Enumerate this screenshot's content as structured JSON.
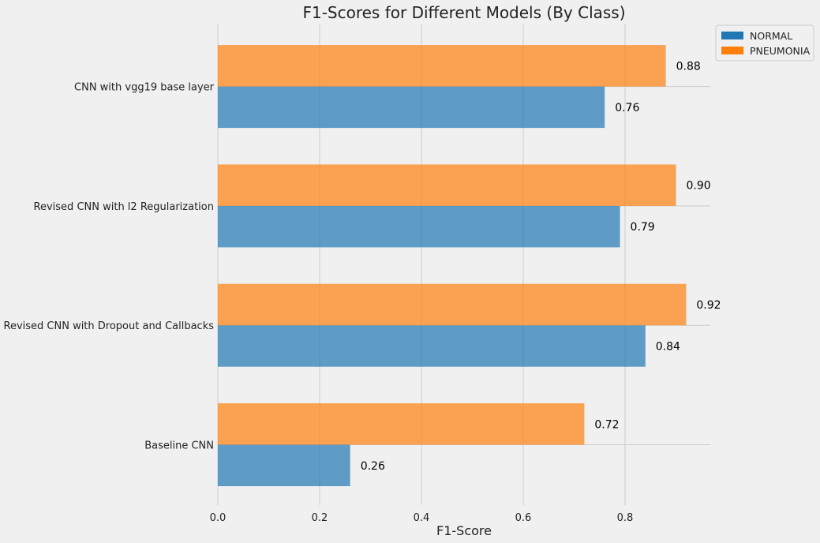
{
  "chart_data": {
    "type": "bar",
    "orientation": "horizontal",
    "title": "F1-Scores for Different Models (By Class)",
    "xlabel": "F1-Score",
    "ylabel": "",
    "xlim": [
      0,
      0.965
    ],
    "xticks": [
      "0.0",
      "0.2",
      "0.4",
      "0.6",
      "0.8"
    ],
    "categories": [
      "Baseline CNN",
      "Revised CNN with Dropout and Callbacks",
      "Revised CNN with l2 Regularization",
      "CNN with vgg19 base layer"
    ],
    "series": [
      {
        "name": "NORMAL",
        "color": "#1f77b4",
        "values": [
          0.26,
          0.84,
          0.79,
          0.76
        ],
        "labels": [
          "0.26",
          "0.84",
          "0.79",
          "0.76"
        ]
      },
      {
        "name": "PNEUMONIA",
        "color": "#ff7f0e",
        "values": [
          0.72,
          0.92,
          0.9,
          0.88
        ],
        "labels": [
          "0.72",
          "0.92",
          "0.90",
          "0.88"
        ]
      }
    ],
    "grid": true,
    "legend_position": "top-right"
  }
}
